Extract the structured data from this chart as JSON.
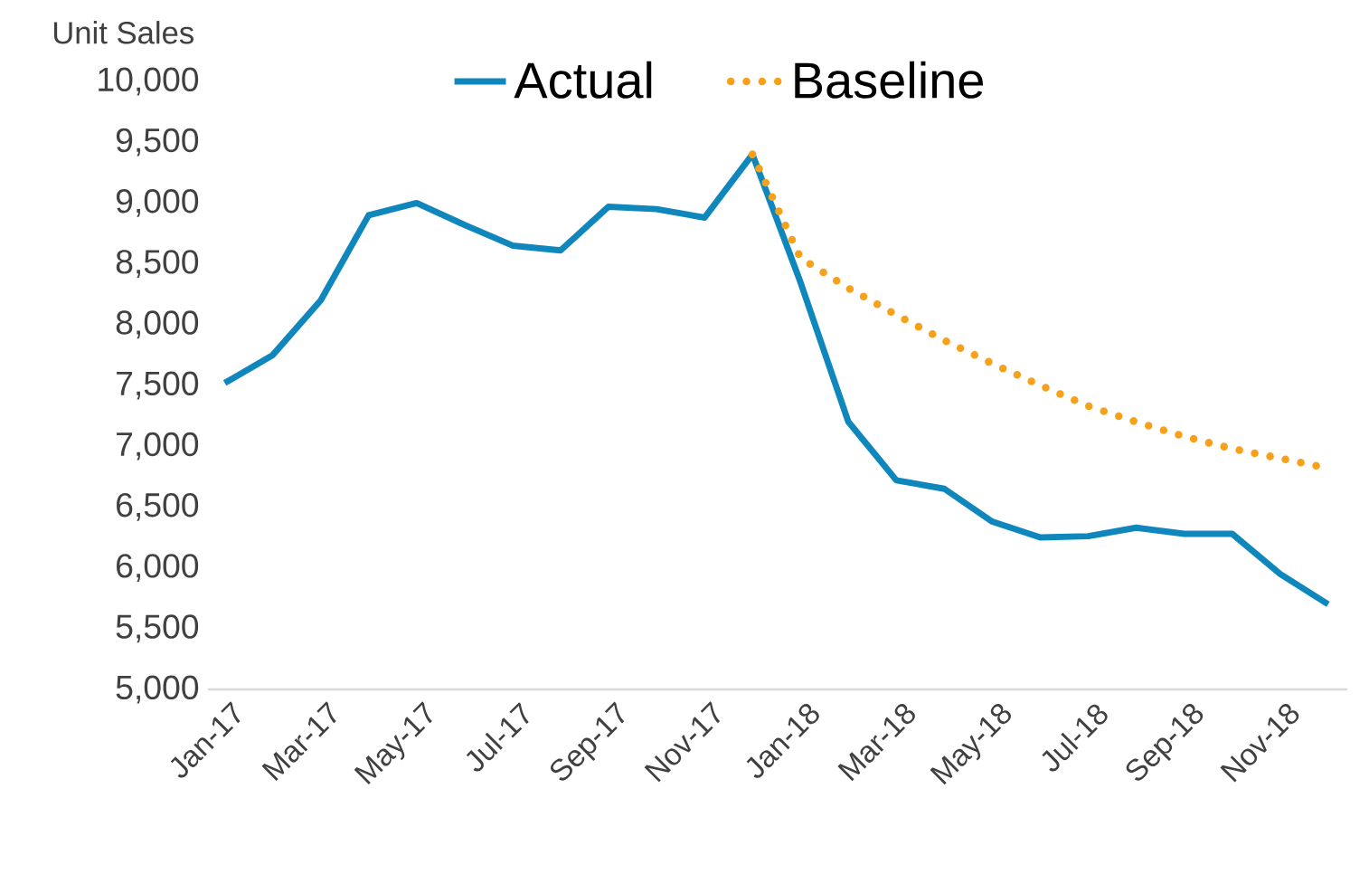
{
  "chart_data": {
    "type": "line",
    "ylabel": "Unit Sales",
    "categories": [
      "Jan-17",
      null,
      "Mar-17",
      null,
      "May-17",
      null,
      "Jul-17",
      null,
      "Sep-17",
      null,
      "Nov-17",
      null,
      "Jan-18",
      null,
      "Mar-18",
      null,
      "May-18",
      null,
      "Jul-18",
      null,
      "Sep-18",
      null,
      "Nov-18",
      null
    ],
    "series": [
      {
        "name": "Actual",
        "color": "#0f87bd",
        "line_style": "solid",
        "values": [
          7520,
          7750,
          8200,
          8900,
          9000,
          8820,
          8650,
          8610,
          8970,
          8950,
          8880,
          9400,
          8350,
          7200,
          6720,
          6650,
          6380,
          6250,
          6260,
          6330,
          6280,
          6280,
          5950,
          5700
        ]
      },
      {
        "name": "Baseline",
        "color": "#f7a11a",
        "line_style": "dotted",
        "values": [
          null,
          null,
          null,
          null,
          null,
          null,
          null,
          null,
          null,
          null,
          null,
          9400,
          8550,
          8300,
          8080,
          7870,
          7680,
          7500,
          7330,
          7200,
          7080,
          6980,
          6900,
          6820
        ]
      }
    ],
    "ylim": [
      5000,
      10000
    ],
    "yticks": [
      {
        "value": 5000,
        "label": "5,000"
      },
      {
        "value": 5500,
        "label": "5,500"
      },
      {
        "value": 6000,
        "label": "6,000"
      },
      {
        "value": 6500,
        "label": "6,500"
      },
      {
        "value": 7000,
        "label": "7,000"
      },
      {
        "value": 7500,
        "label": "7,500"
      },
      {
        "value": 8000,
        "label": "8,000"
      },
      {
        "value": 8500,
        "label": "8,500"
      },
      {
        "value": 9000,
        "label": "9,000"
      },
      {
        "value": 9500,
        "label": "9,500"
      },
      {
        "value": 10000,
        "label": "10,000"
      }
    ],
    "legend": "top",
    "grid": false,
    "marker": "none"
  }
}
